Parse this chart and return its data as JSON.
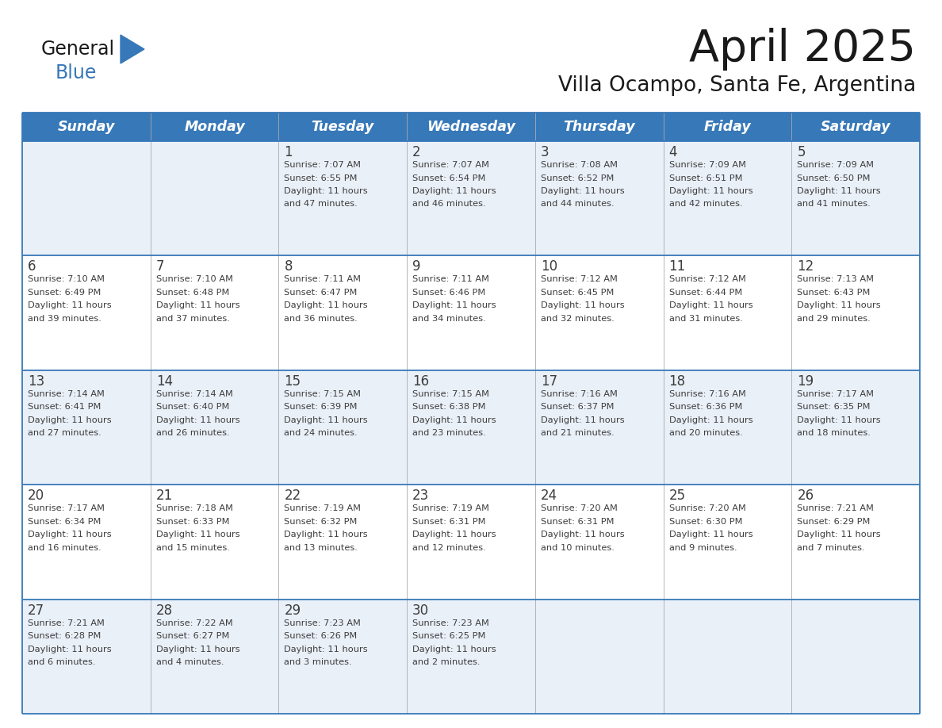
{
  "title": "April 2025",
  "subtitle": "Villa Ocampo, Santa Fe, Argentina",
  "days_of_week": [
    "Sunday",
    "Monday",
    "Tuesday",
    "Wednesday",
    "Thursday",
    "Friday",
    "Saturday"
  ],
  "header_bg": "#3778b8",
  "header_text": "#ffffff",
  "row_bg_even": "#eaf0f8",
  "row_bg_odd": "#ffffff",
  "border_color": "#3778b8",
  "cell_border_color": "#3778b8",
  "text_color": "#3d3d3d",
  "logo_general_color": "#1a1a1a",
  "logo_blue_color": "#3778b8",
  "logo_triangle_color": "#3778b8",
  "calendar_data": [
    [
      {
        "day": "",
        "info": ""
      },
      {
        "day": "",
        "info": ""
      },
      {
        "day": "1",
        "info": "Sunrise: 7:07 AM\nSunset: 6:55 PM\nDaylight: 11 hours\nand 47 minutes."
      },
      {
        "day": "2",
        "info": "Sunrise: 7:07 AM\nSunset: 6:54 PM\nDaylight: 11 hours\nand 46 minutes."
      },
      {
        "day": "3",
        "info": "Sunrise: 7:08 AM\nSunset: 6:52 PM\nDaylight: 11 hours\nand 44 minutes."
      },
      {
        "day": "4",
        "info": "Sunrise: 7:09 AM\nSunset: 6:51 PM\nDaylight: 11 hours\nand 42 minutes."
      },
      {
        "day": "5",
        "info": "Sunrise: 7:09 AM\nSunset: 6:50 PM\nDaylight: 11 hours\nand 41 minutes."
      }
    ],
    [
      {
        "day": "6",
        "info": "Sunrise: 7:10 AM\nSunset: 6:49 PM\nDaylight: 11 hours\nand 39 minutes."
      },
      {
        "day": "7",
        "info": "Sunrise: 7:10 AM\nSunset: 6:48 PM\nDaylight: 11 hours\nand 37 minutes."
      },
      {
        "day": "8",
        "info": "Sunrise: 7:11 AM\nSunset: 6:47 PM\nDaylight: 11 hours\nand 36 minutes."
      },
      {
        "day": "9",
        "info": "Sunrise: 7:11 AM\nSunset: 6:46 PM\nDaylight: 11 hours\nand 34 minutes."
      },
      {
        "day": "10",
        "info": "Sunrise: 7:12 AM\nSunset: 6:45 PM\nDaylight: 11 hours\nand 32 minutes."
      },
      {
        "day": "11",
        "info": "Sunrise: 7:12 AM\nSunset: 6:44 PM\nDaylight: 11 hours\nand 31 minutes."
      },
      {
        "day": "12",
        "info": "Sunrise: 7:13 AM\nSunset: 6:43 PM\nDaylight: 11 hours\nand 29 minutes."
      }
    ],
    [
      {
        "day": "13",
        "info": "Sunrise: 7:14 AM\nSunset: 6:41 PM\nDaylight: 11 hours\nand 27 minutes."
      },
      {
        "day": "14",
        "info": "Sunrise: 7:14 AM\nSunset: 6:40 PM\nDaylight: 11 hours\nand 26 minutes."
      },
      {
        "day": "15",
        "info": "Sunrise: 7:15 AM\nSunset: 6:39 PM\nDaylight: 11 hours\nand 24 minutes."
      },
      {
        "day": "16",
        "info": "Sunrise: 7:15 AM\nSunset: 6:38 PM\nDaylight: 11 hours\nand 23 minutes."
      },
      {
        "day": "17",
        "info": "Sunrise: 7:16 AM\nSunset: 6:37 PM\nDaylight: 11 hours\nand 21 minutes."
      },
      {
        "day": "18",
        "info": "Sunrise: 7:16 AM\nSunset: 6:36 PM\nDaylight: 11 hours\nand 20 minutes."
      },
      {
        "day": "19",
        "info": "Sunrise: 7:17 AM\nSunset: 6:35 PM\nDaylight: 11 hours\nand 18 minutes."
      }
    ],
    [
      {
        "day": "20",
        "info": "Sunrise: 7:17 AM\nSunset: 6:34 PM\nDaylight: 11 hours\nand 16 minutes."
      },
      {
        "day": "21",
        "info": "Sunrise: 7:18 AM\nSunset: 6:33 PM\nDaylight: 11 hours\nand 15 minutes."
      },
      {
        "day": "22",
        "info": "Sunrise: 7:19 AM\nSunset: 6:32 PM\nDaylight: 11 hours\nand 13 minutes."
      },
      {
        "day": "23",
        "info": "Sunrise: 7:19 AM\nSunset: 6:31 PM\nDaylight: 11 hours\nand 12 minutes."
      },
      {
        "day": "24",
        "info": "Sunrise: 7:20 AM\nSunset: 6:31 PM\nDaylight: 11 hours\nand 10 minutes."
      },
      {
        "day": "25",
        "info": "Sunrise: 7:20 AM\nSunset: 6:30 PM\nDaylight: 11 hours\nand 9 minutes."
      },
      {
        "day": "26",
        "info": "Sunrise: 7:21 AM\nSunset: 6:29 PM\nDaylight: 11 hours\nand 7 minutes."
      }
    ],
    [
      {
        "day": "27",
        "info": "Sunrise: 7:21 AM\nSunset: 6:28 PM\nDaylight: 11 hours\nand 6 minutes."
      },
      {
        "day": "28",
        "info": "Sunrise: 7:22 AM\nSunset: 6:27 PM\nDaylight: 11 hours\nand 4 minutes."
      },
      {
        "day": "29",
        "info": "Sunrise: 7:23 AM\nSunset: 6:26 PM\nDaylight: 11 hours\nand 3 minutes."
      },
      {
        "day": "30",
        "info": "Sunrise: 7:23 AM\nSunset: 6:25 PM\nDaylight: 11 hours\nand 2 minutes."
      },
      {
        "day": "",
        "info": ""
      },
      {
        "day": "",
        "info": ""
      },
      {
        "day": "",
        "info": ""
      }
    ]
  ]
}
